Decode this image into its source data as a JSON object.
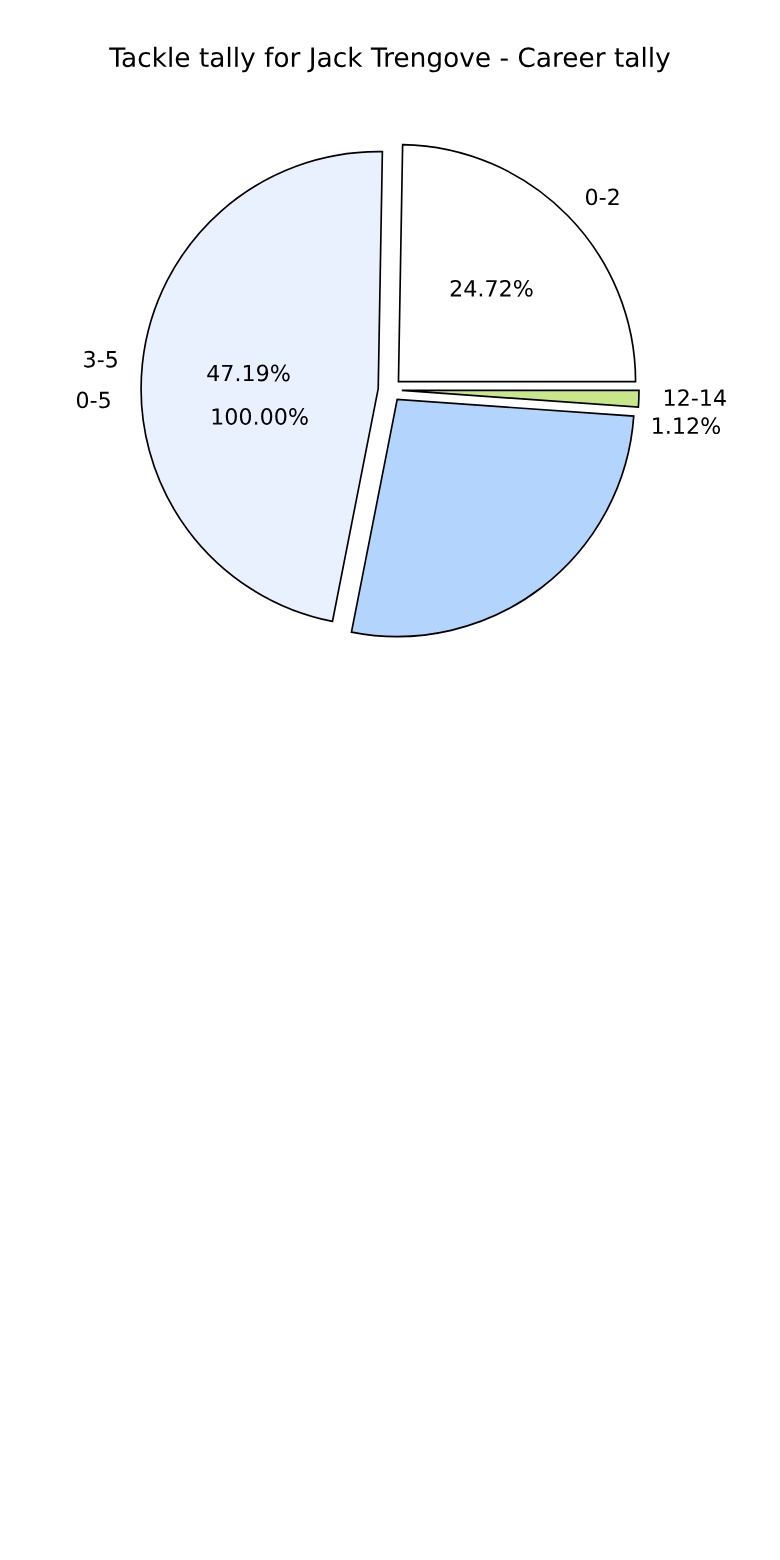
{
  "chart_data": {
    "type": "pie",
    "title": "Tackle tally for Jack Trengove - Career tally",
    "categories": [
      "0-2",
      "3-5",
      null,
      "12-14"
    ],
    "values": [
      24.72,
      47.19,
      26.97,
      1.12
    ],
    "colors": [
      "#ffffff",
      "#eaf1fe",
      "#b3d4fc",
      "#c8e68a"
    ],
    "value_labels": [
      "24.72%",
      "47.19%",
      null,
      "1.12%"
    ],
    "annotations": [
      "0-5",
      "100.00%"
    ]
  }
}
